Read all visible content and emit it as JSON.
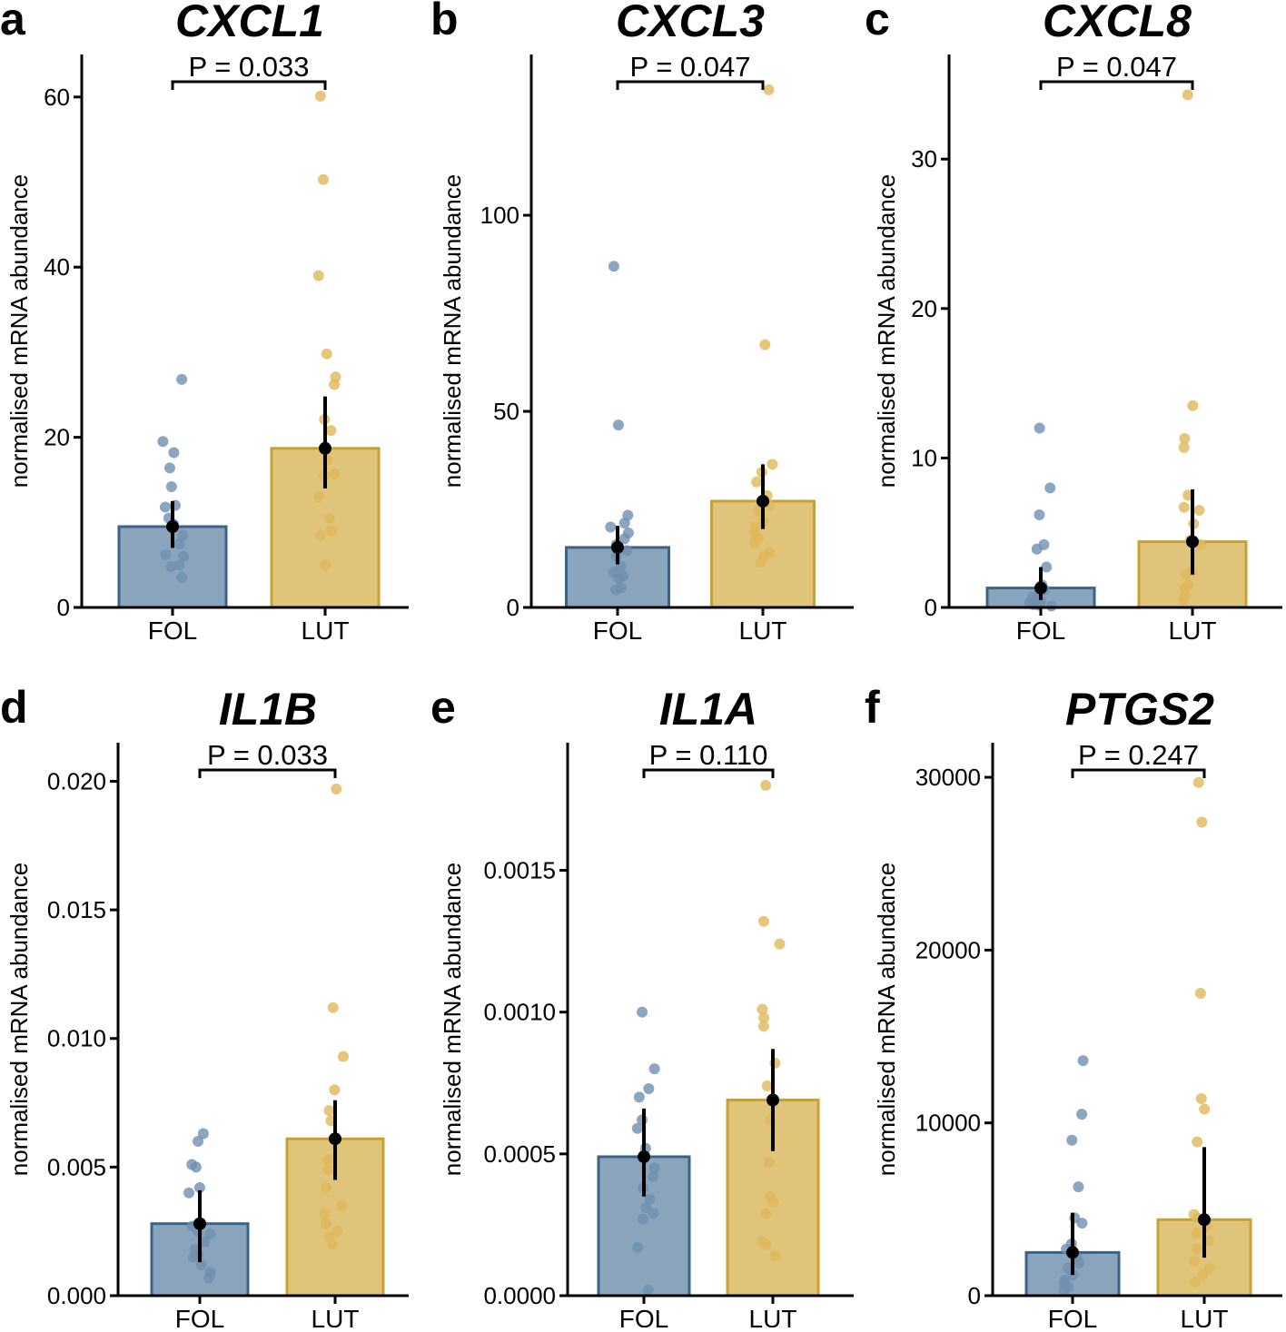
{
  "figure": {
    "ylabel": "normalised mRNA abundance",
    "colors": {
      "fol_fill": "#8aa4be",
      "fol_stroke": "#3b6288",
      "fol_point": "#6f8fb0",
      "lut_fill": "#e0c479",
      "lut_stroke": "#c9a032",
      "lut_point": "#e0b85a",
      "mean": "#000000"
    }
  },
  "chart_data": [
    {
      "type": "bar",
      "panel": "a",
      "title": "CXCL1",
      "pvalue_label": "P = 0.033",
      "categories": [
        "FOL",
        "LUT"
      ],
      "ylabel": "normalised mRNA abundance",
      "ylim": [
        0,
        65
      ],
      "yticks": [
        0,
        20,
        40,
        60
      ],
      "ytick_labels": [
        "0",
        "20",
        "40",
        "60"
      ],
      "series": [
        {
          "name": "FOL",
          "mean": 9.5,
          "ci": [
            7.0,
            12.5
          ],
          "points": [
            26.8,
            19.5,
            18.2,
            16.4,
            14.2,
            12.0,
            11.8,
            10.5,
            9.8,
            8.5,
            7.5,
            6.2,
            6.0,
            5.0,
            4.8,
            3.5
          ]
        },
        {
          "name": "LUT",
          "mean": 18.7,
          "ci": [
            14.0,
            24.8
          ],
          "points": [
            60.1,
            50.3,
            39.0,
            29.8,
            27.1,
            26.2,
            22.1,
            20.8,
            17.3,
            15.7,
            15.5,
            13.0,
            10.5,
            9.0,
            8.5,
            5.0
          ]
        }
      ]
    },
    {
      "type": "bar",
      "panel": "b",
      "title": "CXCL3",
      "pvalue_label": "P = 0.047",
      "categories": [
        "FOL",
        "LUT"
      ],
      "ylabel": "normalised mRNA abundance",
      "ylim": [
        0,
        141
      ],
      "yticks": [
        0,
        50,
        100
      ],
      "ytick_labels": [
        "0",
        "50",
        "100"
      ],
      "series": [
        {
          "name": "FOL",
          "mean": 15.3,
          "ci": [
            11.0,
            20.8
          ],
          "points": [
            87.0,
            46.5,
            23.5,
            21.5,
            20.5,
            19.0,
            17.5,
            16.0,
            14.5,
            13.0,
            10.5,
            9.0,
            8.0,
            7.5,
            5.0,
            4.5
          ]
        },
        {
          "name": "LUT",
          "mean": 27.1,
          "ci": [
            20.0,
            36.5
          ],
          "points": [
            132.0,
            67.0,
            36.5,
            34.5,
            32.0,
            28.5,
            26.0,
            24.5,
            22.0,
            20.5,
            19.0,
            17.5,
            16.5,
            14.0,
            13.0,
            11.5
          ]
        }
      ]
    },
    {
      "type": "bar",
      "panel": "c",
      "title": "CXCL8",
      "pvalue_label": "P = 0.047",
      "categories": [
        "FOL",
        "LUT"
      ],
      "ylabel": "normalised mRNA abundance",
      "ylim": [
        0,
        37
      ],
      "yticks": [
        0,
        10,
        20,
        30
      ],
      "ytick_labels": [
        "0",
        "10",
        "20",
        "30"
      ],
      "series": [
        {
          "name": "FOL",
          "mean": 1.3,
          "ci": [
            0.5,
            2.7
          ],
          "points": [
            12.0,
            8.0,
            6.2,
            4.2,
            3.9,
            2.7,
            1.5,
            1.2,
            0.9,
            0.7,
            0.5,
            0.4,
            0.3,
            0.2,
            0.15,
            0.1
          ]
        },
        {
          "name": "LUT",
          "mean": 4.4,
          "ci": [
            2.2,
            7.9
          ],
          "points": [
            34.3,
            13.5,
            11.3,
            10.7,
            7.5,
            6.7,
            6.5,
            5.6,
            4.5,
            4.2,
            2.4,
            2.2,
            1.5,
            1.3,
            0.8,
            0.5
          ]
        }
      ]
    },
    {
      "type": "bar",
      "panel": "d",
      "title": "IL1B",
      "pvalue_label": "P = 0.033",
      "categories": [
        "FOL",
        "LUT"
      ],
      "ylabel": "normalised mRNA abundance",
      "ylim": [
        0,
        0.0215
      ],
      "yticks": [
        0,
        0.005,
        0.01,
        0.015,
        0.02
      ],
      "ytick_labels": [
        "0.000",
        "0.005",
        "0.010",
        "0.015",
        "0.020"
      ],
      "series": [
        {
          "name": "FOL",
          "mean": 0.0028,
          "ci": [
            0.0013,
            0.0041
          ],
          "points": [
            0.0063,
            0.006,
            0.0051,
            0.005,
            0.0042,
            0.004,
            0.0027,
            0.0025,
            0.0024,
            0.0021,
            0.0018,
            0.0016,
            0.0015,
            0.0012,
            0.0009,
            0.0007
          ]
        },
        {
          "name": "LUT",
          "mean": 0.0061,
          "ci": [
            0.0045,
            0.0076
          ],
          "points": [
            0.0197,
            0.0112,
            0.0093,
            0.008,
            0.0072,
            0.0068,
            0.0053,
            0.0049,
            0.0042,
            0.0035,
            0.0032,
            0.0028,
            0.0028,
            0.0025,
            0.0023,
            0.002
          ]
        }
      ]
    },
    {
      "type": "bar",
      "panel": "e",
      "title": "IL1A",
      "pvalue_label": "P = 0.110",
      "categories": [
        "FOL",
        "LUT"
      ],
      "ylabel": "normalised mRNA abundance",
      "ylim": [
        0,
        0.00195
      ],
      "yticks": [
        0,
        0.0005,
        0.001,
        0.0015
      ],
      "ytick_labels": [
        "0.0000",
        "0.0005",
        "0.0010",
        "0.0015"
      ],
      "series": [
        {
          "name": "FOL",
          "mean": 0.00049,
          "ci": [
            0.00035,
            0.00066
          ],
          "points": [
            0.001,
            0.0008,
            0.00073,
            0.0007,
            0.00062,
            0.00059,
            0.00052,
            0.00045,
            0.00042,
            0.00038,
            0.00034,
            0.00031,
            0.00029,
            0.00027,
            0.00017,
            2e-05
          ]
        },
        {
          "name": "LUT",
          "mean": 0.00069,
          "ci": [
            0.00051,
            0.00087
          ],
          "points": [
            0.0018,
            0.00132,
            0.00124,
            0.00101,
            0.00098,
            0.00095,
            0.00082,
            0.00074,
            0.00062,
            0.00047,
            0.00035,
            0.00033,
            0.00029,
            0.00019,
            0.00018,
            0.00014
          ]
        }
      ]
    },
    {
      "type": "bar",
      "panel": "f",
      "title": "PTGS2",
      "pvalue_label": "P = 0.247",
      "categories": [
        "FOL",
        "LUT"
      ],
      "ylabel": "normalised mRNA abundance",
      "ylim": [
        0,
        32000
      ],
      "yticks": [
        0,
        10000,
        20000,
        30000
      ],
      "ytick_labels": [
        "0",
        "10000",
        "20000",
        "30000"
      ],
      "series": [
        {
          "name": "FOL",
          "mean": 2500,
          "ci": [
            1200,
            4800
          ],
          "points": [
            13600,
            10500,
            9000,
            6300,
            4500,
            4200,
            3000,
            2700,
            2200,
            1900,
            1600,
            1200,
            900,
            700,
            500,
            300
          ]
        },
        {
          "name": "LUT",
          "mean": 4400,
          "ci": [
            2200,
            8600
          ],
          "points": [
            29700,
            27400,
            17500,
            11400,
            10800,
            8900,
            4700,
            4500,
            4000,
            3600,
            3200,
            2700,
            2000,
            1600,
            1200,
            800
          ]
        }
      ]
    }
  ]
}
